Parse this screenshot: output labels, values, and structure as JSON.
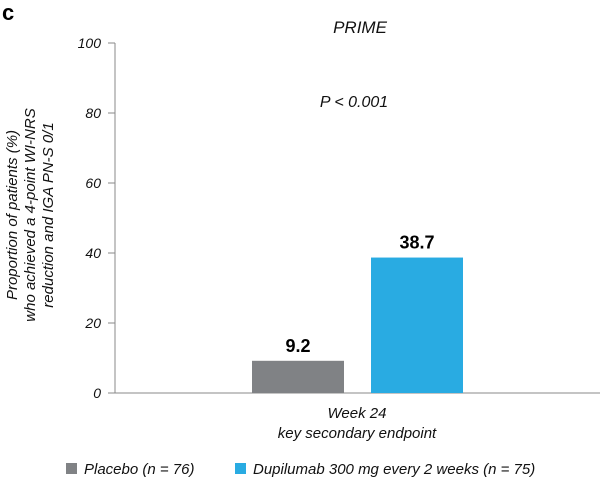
{
  "panel_label": "c",
  "chart_data": {
    "type": "bar",
    "title": "PRIME",
    "annotation": "P < 0.001",
    "ylabel_lines": [
      "Proportion of patients (%)",
      "who achieved a 4-point WI-NRS",
      "reduction and IGA PN-S 0/1"
    ],
    "xlabel_lines": [
      "Week 24",
      "key secondary endpoint"
    ],
    "ylim": [
      0,
      100
    ],
    "yticks": [
      0,
      20,
      40,
      60,
      80,
      100
    ],
    "categories": [
      "Week 24"
    ],
    "series": [
      {
        "name": "Placebo (n = 76)",
        "values": [
          9.2
        ],
        "label": "9.2",
        "color": "#808285"
      },
      {
        "name": "Dupilumab 300 mg every 2 weeks (n = 75)",
        "values": [
          38.7
        ],
        "label": "38.7",
        "color": "#29abe2"
      }
    ],
    "legend_position": "bottom",
    "grid": false
  }
}
